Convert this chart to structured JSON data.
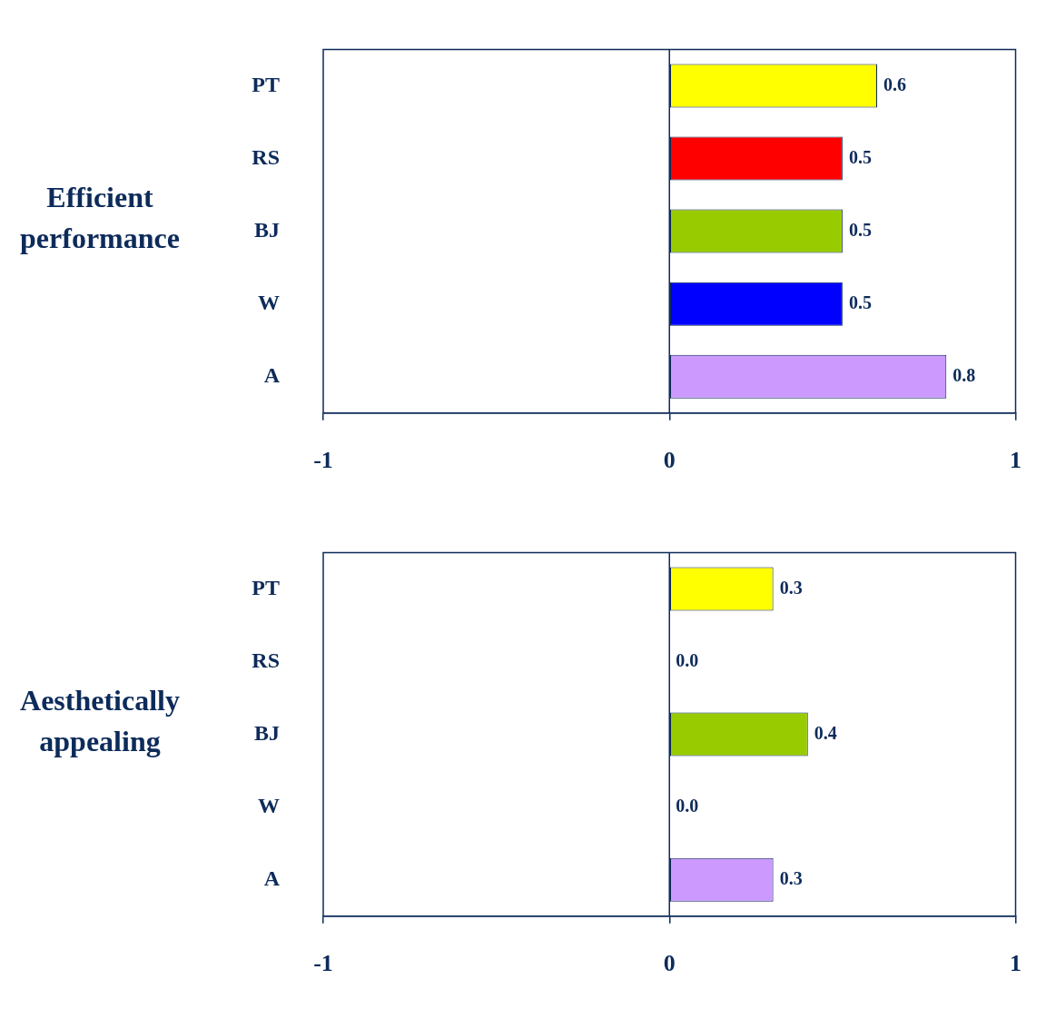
{
  "chart_data": [
    {
      "type": "bar",
      "orientation": "horizontal",
      "ylabel": "Efficient performance",
      "categories": [
        "PT",
        "RS",
        "BJ",
        "W",
        "A"
      ],
      "values": [
        0.6,
        0.5,
        0.5,
        0.5,
        0.8
      ],
      "colors": [
        "#ffff00",
        "#ff0000",
        "#99cc00",
        "#0000ff",
        "#cc99ff"
      ],
      "value_labels": [
        "0.6",
        "0.5",
        "0.5",
        "0.5",
        "0.8"
      ],
      "xlim": [
        -1,
        1
      ],
      "xticks": [
        -1,
        0,
        1
      ],
      "grid": false
    },
    {
      "type": "bar",
      "orientation": "horizontal",
      "ylabel": "Aesthetically appealing",
      "categories": [
        "PT",
        "RS",
        "BJ",
        "W",
        "A"
      ],
      "values": [
        0.3,
        0,
        0.4,
        0,
        0.3
      ],
      "colors": [
        "#ffff00",
        "#ff0000",
        "#99cc00",
        "#0000ff",
        "#cc99ff"
      ],
      "value_labels": [
        "0.3",
        "0.0",
        "0.4",
        "0.0",
        "0.3"
      ],
      "xlim": [
        -1,
        1
      ],
      "xticks": [
        -1,
        0,
        1
      ],
      "grid": false
    }
  ]
}
